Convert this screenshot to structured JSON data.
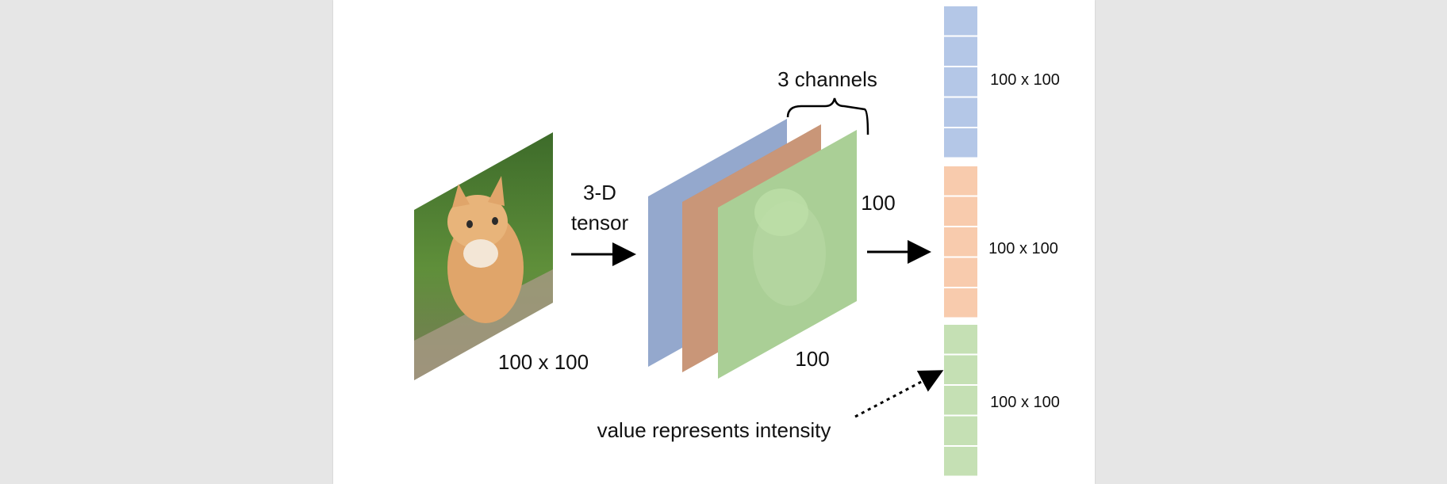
{
  "labels": {
    "tensor_line1": "3-D",
    "tensor_line2": "tensor",
    "image_size": "100 x 100",
    "channels": "3 channels",
    "dim_right": "100",
    "dim_bottom": "100",
    "vector_block_1": "100 x 100",
    "vector_block_2": "100 x 100",
    "vector_block_3": "100 x 100",
    "intensity_note": "value represents intensity"
  },
  "colors": {
    "page_bg": "#ffffff",
    "viewer_bg": "#e6e6e6",
    "blue_channel": "#b4c7e7",
    "orange_channel": "#f8cbad",
    "green_channel": "#c5e0b4",
    "arrow": "#000000"
  },
  "vector": {
    "groups": [
      {
        "name": "blue",
        "cells": 5
      },
      {
        "name": "orange",
        "cells": 5
      },
      {
        "name": "green",
        "cells": 5
      }
    ]
  }
}
